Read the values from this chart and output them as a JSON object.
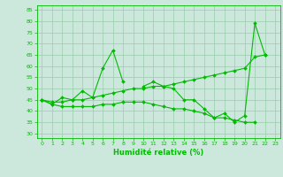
{
  "x": [
    0,
    1,
    2,
    3,
    4,
    5,
    6,
    7,
    8,
    9,
    10,
    11,
    12,
    13,
    14,
    15,
    16,
    17,
    18,
    19,
    20,
    21,
    22,
    23
  ],
  "series1": [
    45,
    43,
    46,
    45,
    49,
    46,
    59,
    67,
    53,
    null,
    51,
    53,
    51,
    50,
    45,
    45,
    41,
    37,
    39,
    35,
    38,
    79,
    65,
    null
  ],
  "series2": [
    45,
    44,
    44,
    45,
    45,
    46,
    47,
    48,
    49,
    50,
    50,
    51,
    51,
    52,
    53,
    54,
    55,
    56,
    57,
    58,
    59,
    64,
    65,
    null
  ],
  "series3": [
    45,
    43,
    42,
    42,
    42,
    42,
    43,
    43,
    44,
    44,
    44,
    43,
    42,
    41,
    41,
    40,
    39,
    37,
    37,
    36,
    35,
    35,
    null,
    null
  ],
  "line_color": "#00bb00",
  "bg_color": "#cce8dc",
  "grid_color": "#99ccaa",
  "xlabel": "Humidité relative (%)",
  "ylim": [
    28,
    87
  ],
  "xlim": [
    -0.5,
    23.5
  ],
  "yticks": [
    30,
    35,
    40,
    45,
    50,
    55,
    60,
    65,
    70,
    75,
    80,
    85
  ],
  "xticks": [
    0,
    1,
    2,
    3,
    4,
    5,
    6,
    7,
    8,
    9,
    10,
    11,
    12,
    13,
    14,
    15,
    16,
    17,
    18,
    19,
    20,
    21,
    22,
    23
  ]
}
